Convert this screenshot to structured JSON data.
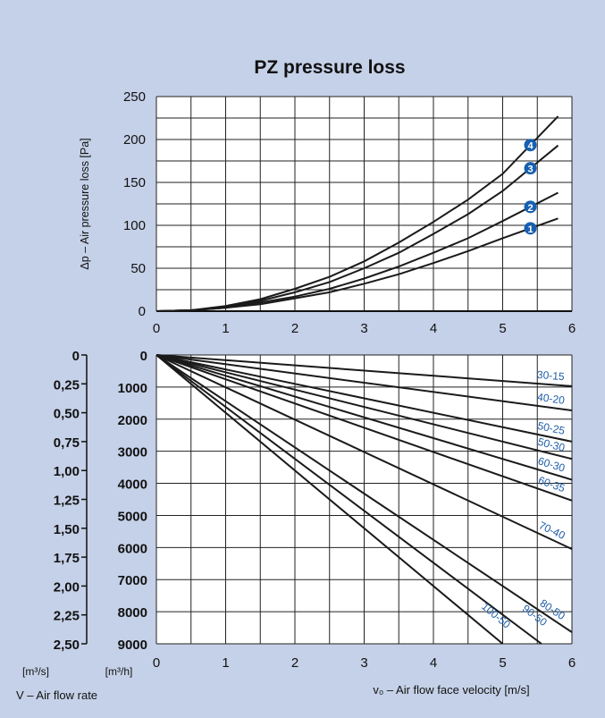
{
  "chart_data": [
    {
      "type": "line",
      "title": "PZ pressure loss",
      "ylabel": "Δp – Air pressure loss [Pa]",
      "xlim": [
        0,
        6
      ],
      "ylim": [
        0,
        250
      ],
      "x_ticks": [
        "0",
        "1",
        "2",
        "3",
        "4",
        "5",
        "6"
      ],
      "y_ticks": [
        "0",
        "50",
        "100",
        "150",
        "200",
        "250"
      ],
      "grid": true,
      "series": [
        {
          "marker": "1",
          "x": [
            0,
            0.5,
            1,
            1.5,
            2,
            2.5,
            3,
            3.5,
            4,
            4.5,
            5,
            5.8
          ],
          "y": [
            0,
            1,
            4,
            8,
            15,
            22,
            32,
            43,
            56,
            70,
            85,
            108
          ]
        },
        {
          "marker": "2",
          "x": [
            0,
            0.5,
            1,
            1.5,
            2,
            2.5,
            3,
            3.5,
            4,
            4.5,
            5,
            5.8
          ],
          "y": [
            0,
            1,
            4,
            10,
            17,
            26,
            38,
            52,
            68,
            85,
            105,
            138
          ]
        },
        {
          "marker": "3",
          "x": [
            0,
            0.5,
            1,
            1.5,
            2,
            2.5,
            3,
            3.5,
            4,
            4.5,
            5,
            5.8
          ],
          "y": [
            0,
            1,
            5,
            12,
            22,
            34,
            50,
            68,
            90,
            113,
            140,
            193
          ]
        },
        {
          "marker": "4",
          "x": [
            0,
            0.5,
            1,
            1.5,
            2,
            2.5,
            3,
            3.5,
            4,
            4.5,
            5,
            5.8
          ],
          "y": [
            0,
            1,
            6,
            14,
            26,
            40,
            58,
            80,
            104,
            130,
            160,
            227
          ]
        }
      ]
    },
    {
      "type": "line",
      "xlabel": "v₀ – Air flow face velocity  [m/s]",
      "ylabel": "V – Air flow rate",
      "xlim": [
        0,
        6
      ],
      "ylim": [
        0,
        9000
      ],
      "y_inverted": true,
      "x_ticks": [
        "0",
        "1",
        "2",
        "3",
        "4",
        "5",
        "6"
      ],
      "y_ticks": [
        "0",
        "1000",
        "2000",
        "3000",
        "4000",
        "5000",
        "6000",
        "7000",
        "8000",
        "9000"
      ],
      "y_unit": "[m³/h]",
      "y2_ticks": [
        "0",
        "0,25",
        "0,50",
        "0,75",
        "1,00",
        "1,25",
        "1,50",
        "1,75",
        "2,00",
        "2,25",
        "2,50"
      ],
      "y2_unit": "[m³/s]",
      "grid": true,
      "series": [
        {
          "name": "30-15",
          "x_end": 6,
          "y_end": 972
        },
        {
          "name": "40-20",
          "x_end": 6,
          "y_end": 1728
        },
        {
          "name": "50-25",
          "x_end": 6,
          "y_end": 2700
        },
        {
          "name": "50-30",
          "x_end": 6,
          "y_end": 3240
        },
        {
          "name": "60-30",
          "x_end": 6,
          "y_end": 3888
        },
        {
          "name": "60-35",
          "x_end": 6,
          "y_end": 4536
        },
        {
          "name": "70-40",
          "x_end": 6,
          "y_end": 6048
        },
        {
          "name": "80-50",
          "x_end": 6,
          "y_end": 8640
        },
        {
          "name": "90-50",
          "x_end": 5.56,
          "y_end": 9000
        },
        {
          "name": "100-50",
          "x_end": 5.0,
          "y_end": 9000
        }
      ]
    }
  ],
  "colors": {
    "background": "#c5d1e8",
    "plot": "#ffffff",
    "line": "#1a1a1a",
    "label": "#1f5fa8",
    "marker": "#1760b0"
  }
}
